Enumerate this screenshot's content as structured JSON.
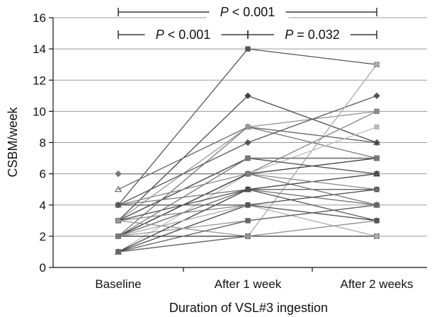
{
  "chart_data": {
    "type": "line",
    "xlabel": "Duration of VSL#3 ingestion",
    "ylabel": "CSBM/week",
    "categories": [
      "Baseline",
      "After 1 week",
      "After 2 weeks"
    ],
    "ylim": [
      0,
      16
    ],
    "yticks": [
      "0",
      "2",
      "4",
      "6",
      "8",
      "10",
      "12",
      "14",
      "16"
    ],
    "grid": "horizontal",
    "legend": "none",
    "significance": [
      {
        "label": "P < 0.001",
        "from": "Baseline",
        "to": "After 2 weeks",
        "level": "upper"
      },
      {
        "label": "P < 0.001",
        "from": "Baseline",
        "to": "After 1 week",
        "level": "lower"
      },
      {
        "label": "P = 0.032",
        "from": "After 1 week",
        "to": "After 2 weeks",
        "level": "lower"
      }
    ],
    "series": [
      {
        "values": [
          4,
          14,
          13
        ],
        "color": "#555555",
        "marker": "square"
      },
      {
        "values": [
          3,
          11,
          8
        ],
        "color": "#444444",
        "marker": "diamond"
      },
      {
        "values": [
          5,
          9,
          8
        ],
        "color": "#666666",
        "marker": "triangle"
      },
      {
        "values": [
          2,
          9,
          7
        ],
        "color": "#777777",
        "marker": "square"
      },
      {
        "values": [
          3,
          9,
          10
        ],
        "color": "#999999",
        "marker": "square"
      },
      {
        "values": [
          4,
          8,
          11
        ],
        "color": "#555555",
        "marker": "diamond"
      },
      {
        "values": [
          1,
          2,
          13
        ],
        "color": "#aaaaaa",
        "marker": "circle"
      },
      {
        "values": [
          2,
          6,
          10
        ],
        "color": "#888888",
        "marker": "square"
      },
      {
        "values": [
          3,
          7,
          7
        ],
        "color": "#222222",
        "marker": "square"
      },
      {
        "values": [
          1,
          6,
          9
        ],
        "color": "#bbbbbb",
        "marker": "square"
      },
      {
        "values": [
          2,
          6,
          7
        ],
        "color": "#333333",
        "marker": "square"
      },
      {
        "values": [
          3,
          7,
          6
        ],
        "color": "#555555",
        "marker": "square"
      },
      {
        "values": [
          2,
          5,
          5
        ],
        "color": "#666666",
        "marker": "cross"
      },
      {
        "values": [
          4,
          5,
          4
        ],
        "color": "#777777",
        "marker": "triangle"
      },
      {
        "values": [
          1,
          4,
          5
        ],
        "color": "#444444",
        "marker": "square"
      },
      {
        "values": [
          3,
          4,
          3
        ],
        "color": "#888888",
        "marker": "diamond"
      },
      {
        "values": [
          2,
          3,
          4
        ],
        "color": "#999999",
        "marker": "cross"
      },
      {
        "values": [
          1,
          2,
          3
        ],
        "color": "#666666",
        "marker": "circle"
      },
      {
        "values": [
          2,
          2,
          2
        ],
        "color": "#333333",
        "marker": "square"
      },
      {
        "values": [
          6,
          6,
          4
        ],
        "color": "#777777",
        "marker": "diamond"
      },
      {
        "values": [
          3,
          5,
          3
        ],
        "color": "#555555",
        "marker": "square"
      },
      {
        "values": [
          1,
          5,
          6
        ],
        "color": "#444444",
        "marker": "triangle"
      },
      {
        "values": [
          2,
          4,
          2
        ],
        "color": "#aaaaaa",
        "marker": "circle"
      },
      {
        "values": [
          4,
          6,
          5
        ],
        "color": "#888888",
        "marker": "cross"
      },
      {
        "values": [
          3,
          2,
          3
        ],
        "color": "#999999",
        "marker": "diamond"
      },
      {
        "values": [
          1,
          3,
          4
        ],
        "color": "#666666",
        "marker": "square"
      },
      {
        "values": [
          2,
          7,
          7
        ],
        "color": "#777777",
        "marker": "square"
      },
      {
        "values": [
          4,
          4,
          3
        ],
        "color": "#555555",
        "marker": "circle"
      }
    ]
  }
}
